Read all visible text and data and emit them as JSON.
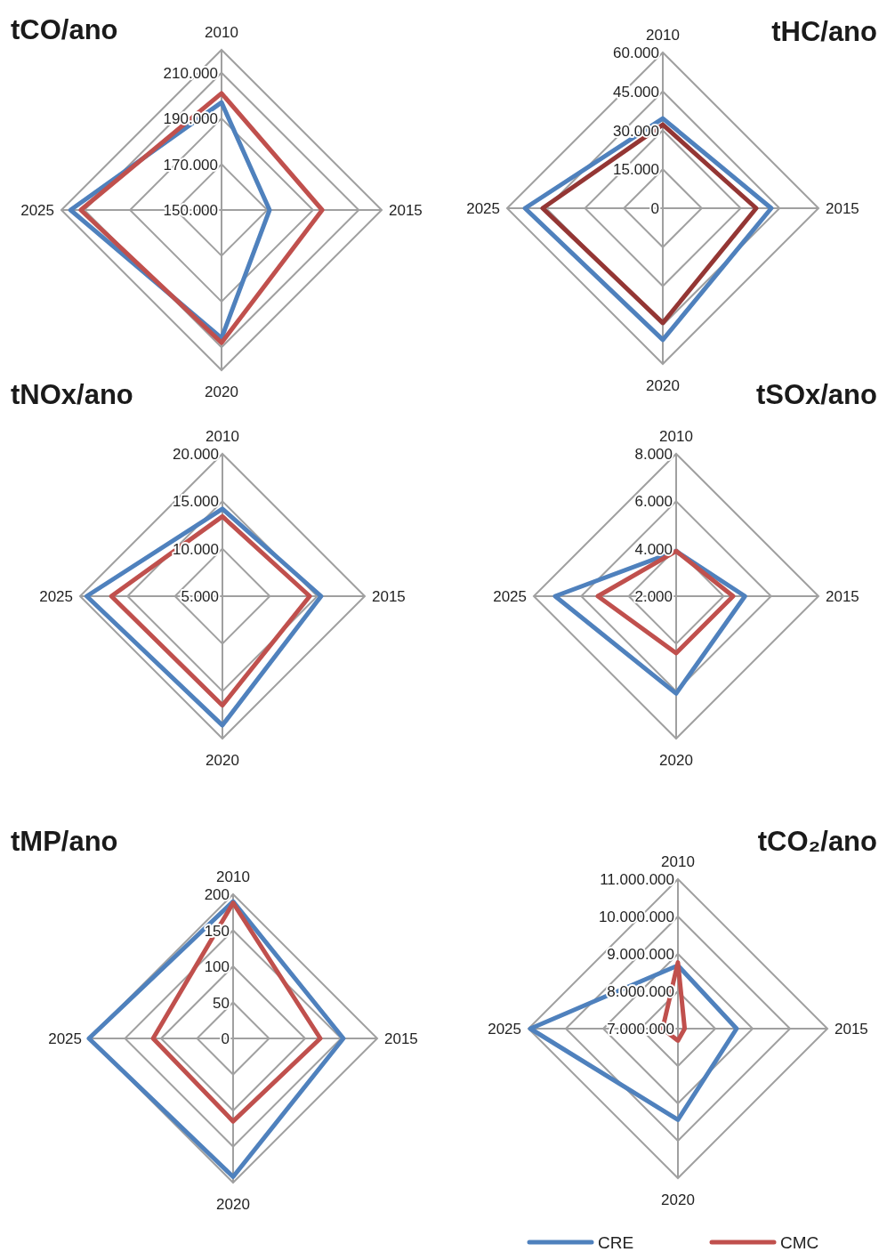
{
  "chart_data": [
    {
      "type": "radar",
      "title": "tCO/ano",
      "categories": [
        "2010",
        "2015",
        "2020",
        "2025"
      ],
      "ylim": [
        150000,
        220000
      ],
      "yticks": [
        {
          "value": 150000,
          "label": "150.000"
        },
        {
          "value": 170000,
          "label": "170.000"
        },
        {
          "value": 190000,
          "label": "190.000"
        },
        {
          "value": 210000,
          "label": "210.000"
        }
      ],
      "grid": true,
      "marker": "none",
      "legend": false,
      "series": [
        {
          "color": "#4f81bd",
          "values": [
            197000,
            171000,
            206000,
            216000
          ]
        },
        {
          "color": "#c0504d",
          "values": [
            201000,
            194000,
            208000,
            211500
          ]
        }
      ]
    },
    {
      "type": "radar",
      "title": "tHC/ano",
      "categories": [
        "2010",
        "2015",
        "2020",
        "2025"
      ],
      "ylim": [
        0,
        60000
      ],
      "yticks": [
        0,
        {
          "value": 15000,
          "label": "15.000"
        },
        {
          "value": 30000,
          "label": "30.000"
        },
        {
          "value": 45000,
          "label": "45.000"
        },
        {
          "value": 60000,
          "label": "60.000"
        }
      ],
      "grid": true,
      "marker": "none",
      "legend": false,
      "series": [
        {
          "color": "#4f81bd",
          "values": [
            34600,
            41800,
            50700,
            53100
          ]
        },
        {
          "color": "#943634",
          "values": [
            32200,
            36000,
            44200,
            46300
          ]
        }
      ]
    },
    {
      "type": "radar",
      "title": "tNOx/ano",
      "categories": [
        "2010",
        "2015",
        "2020",
        "2025"
      ],
      "ylim": [
        5000,
        20000
      ],
      "yticks": [
        {
          "value": 5000,
          "label": "5.000"
        },
        {
          "value": 10000,
          "label": "10.000"
        },
        {
          "value": 15000,
          "label": "15.000"
        },
        {
          "value": 20000,
          "label": "20.000"
        }
      ],
      "grid": true,
      "marker": "none",
      "legend": false,
      "series": [
        {
          "color": "#4f81bd",
          "values": [
            14200,
            15400,
            18600,
            19300
          ]
        },
        {
          "color": "#c0504d",
          "values": [
            13400,
            14200,
            16500,
            16700
          ]
        }
      ]
    },
    {
      "type": "radar",
      "title": "tSOx/ano",
      "categories": [
        "2010",
        "2015",
        "2020",
        "2025"
      ],
      "ylim": [
        2000,
        8000
      ],
      "yticks": [
        {
          "value": 2000,
          "label": "2.000"
        },
        {
          "value": 4000,
          "label": "4.000"
        },
        {
          "value": 6000,
          "label": "6.000"
        },
        {
          "value": 8000,
          "label": "8.000"
        }
      ],
      "grid": true,
      "marker": "none",
      "legend": false,
      "series": [
        {
          "color": "#4f81bd",
          "values": [
            3900,
            4900,
            6100,
            7100
          ]
        },
        {
          "color": "#c0504d",
          "values": [
            3900,
            4400,
            4400,
            5300
          ]
        }
      ]
    },
    {
      "type": "radar",
      "title": "tMP/ano",
      "categories": [
        "2010",
        "2015",
        "2020",
        "2025"
      ],
      "ylim": [
        0,
        200
      ],
      "yticks": [
        0,
        50,
        100,
        150,
        200
      ],
      "grid": true,
      "marker": "none",
      "legend": false,
      "series": [
        {
          "color": "#4f81bd",
          "values": [
            190,
            153,
            192,
            200
          ]
        },
        {
          "color": "#c0504d",
          "values": [
            188,
            121,
            115,
            111
          ]
        }
      ]
    },
    {
      "type": "radar",
      "title": "tCO₂/ano",
      "categories": [
        "2010",
        "2015",
        "2020",
        "2025"
      ],
      "ylim": [
        7000000,
        11000000
      ],
      "yticks": [
        {
          "value": 7000000,
          "label": "7.000.000"
        },
        {
          "value": 8000000,
          "label": "8.000.000"
        },
        {
          "value": 9000000,
          "label": "9.000.000"
        },
        {
          "value": 10000000,
          "label": "10.000.000"
        },
        {
          "value": 11000000,
          "label": "11.000.000"
        }
      ],
      "grid": true,
      "marker": "none",
      "legend": "bottom",
      "series": [
        {
          "name": "CRE",
          "color": "#4f81bd",
          "values": [
            8690000,
            8570000,
            9440000,
            10950000
          ]
        },
        {
          "name": "CMC",
          "color": "#c0504d",
          "values": [
            8770000,
            7180000,
            7320000,
            7410000
          ]
        }
      ]
    }
  ]
}
